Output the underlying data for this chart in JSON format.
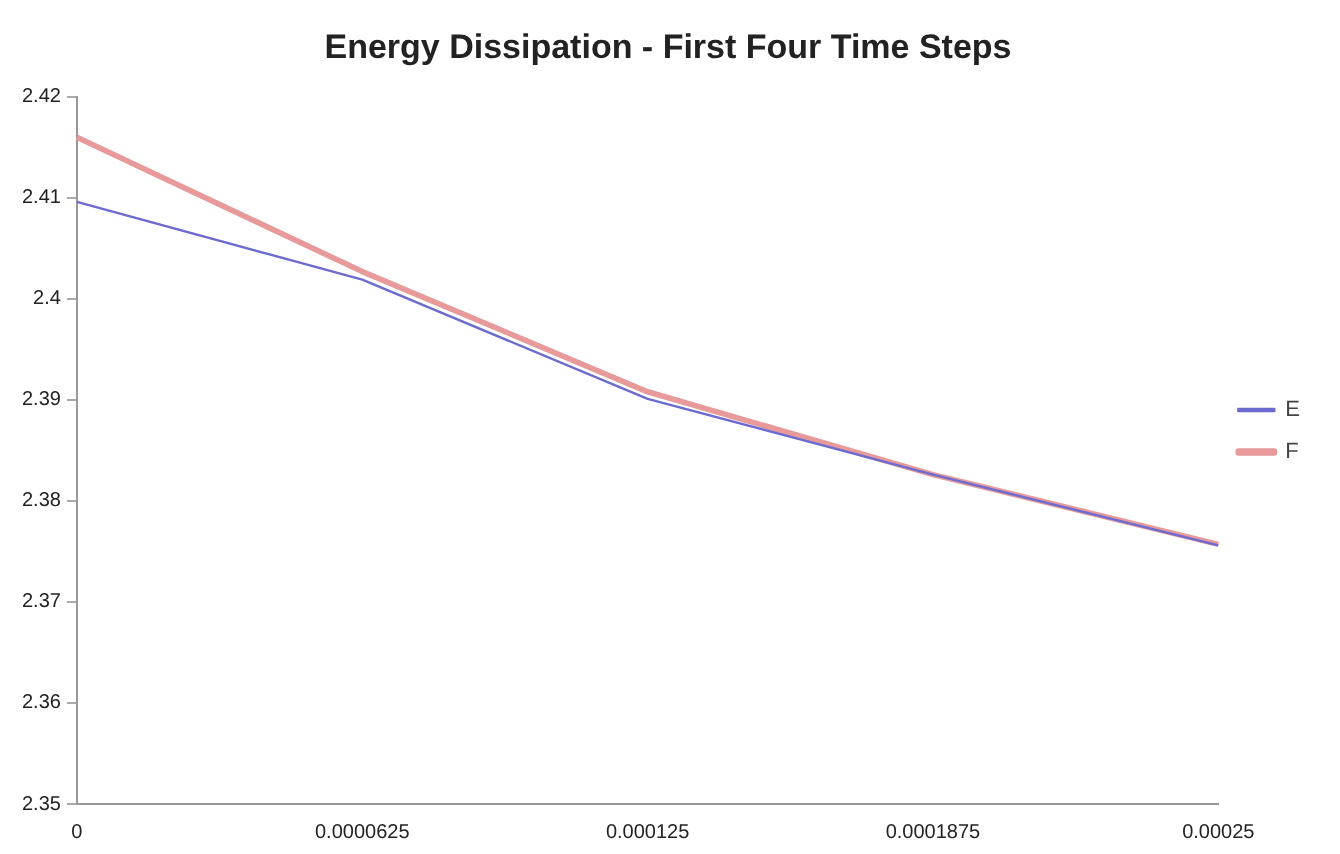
{
  "chart_data": {
    "type": "line",
    "title": "Energy Dissipation - First Four Time Steps",
    "categories": [
      "0",
      "0.0000625",
      "0.000125",
      "0.0001875",
      "0.00025"
    ],
    "series": [
      {
        "name": "E",
        "color": "#6b6bd0",
        "values": [
          2.4096,
          2.4019,
          2.3901,
          2.3826,
          2.3756
        ]
      },
      {
        "name": "F",
        "color": "#e89a9a",
        "values": [
          2.416,
          2.4027,
          2.3908,
          2.3826,
          2.3757
        ]
      }
    ],
    "ylim": [
      2.35,
      2.42
    ],
    "yticks": [
      2.35,
      2.36,
      2.37,
      2.38,
      2.39,
      2.4,
      2.41,
      2.42
    ],
    "grid": false,
    "legend": "right",
    "marker": "none",
    "line_style": "solid"
  }
}
